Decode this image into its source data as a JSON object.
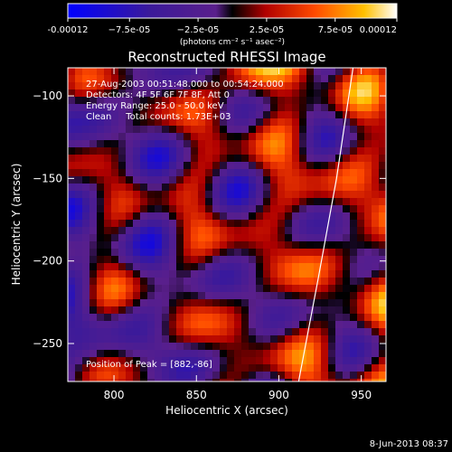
{
  "chart_data": {
    "type": "heatmap",
    "title": "Reconstructed RHESSI Image",
    "xlabel": "Heliocentric X (arcsec)",
    "ylabel": "Heliocentric Y (arcsec)",
    "xlim": [
      772,
      965
    ],
    "ylim": [
      -273,
      -83
    ],
    "xticks": [
      800,
      850,
      900,
      950
    ],
    "yticks": [
      -100,
      -150,
      -200,
      -250
    ],
    "colorbar": {
      "range": [
        -0.00012,
        0.00012
      ],
      "tick_labels": [
        "-0.00012",
        "−7.5e-05",
        "−2.5e-05",
        "2.5e-05",
        "7.5e-05",
        "0.00012"
      ],
      "tick_values": [
        -0.00012,
        -7.5e-05,
        -2.5e-05,
        2.5e-05,
        7.5e-05,
        0.00012
      ],
      "units": "(photons cm⁻² s⁻¹ asec⁻²)"
    },
    "annotations": [
      "27-Aug-2003 00:51:48.000 to 00:54:24.000",
      "Detectors: 4F 5F 6F 7F 8F, Att 0",
      "Energy Range: 25.0 - 50.0 keV",
      "Clean     Total counts: 1.73E+03"
    ],
    "peak_label": "Position of Peak = [882,-86]",
    "peak": [
      882,
      -86
    ],
    "colors": {
      "negative": "#0000ff",
      "mid": "#5a1f8c",
      "positive": "#ffffff"
    }
  },
  "footer": {
    "timestamp": "8-Jun-2013 08:37"
  }
}
